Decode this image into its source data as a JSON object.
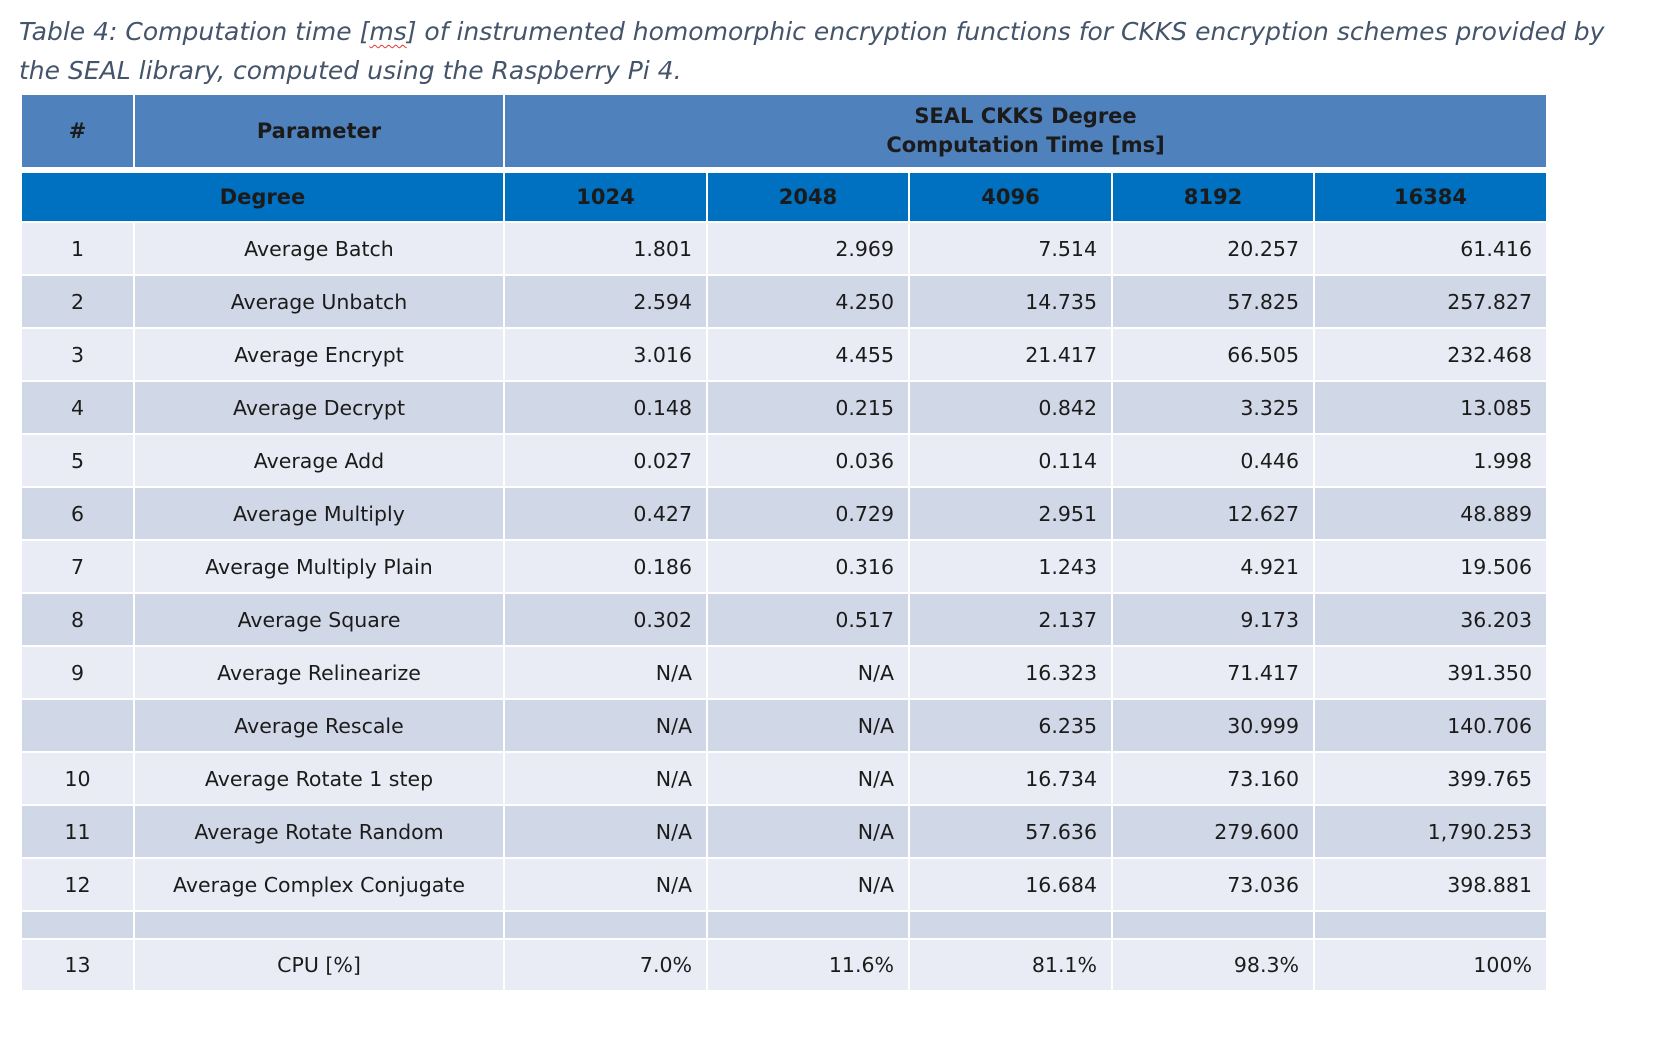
{
  "caption": {
    "line1_pre": "Table 4: Computation time [",
    "line1_underlined": "ms",
    "line1_post": "] of instrumented homomorphic encryption functions for CKKS encryption schemes provided by",
    "line2": "the SEAL library, computed using the Raspberry Pi 4."
  },
  "header": {
    "num_label": "#",
    "parameter_label": "Parameter",
    "group_line1": "SEAL CKKS Degree",
    "group_line2": "Computation Time [ms]",
    "degree_label": "Degree",
    "degrees": [
      "1024",
      "2048",
      "4096",
      "8192",
      "16384"
    ]
  },
  "rows": [
    {
      "num": "1",
      "param": "Average Batch",
      "values": [
        "1.801",
        "2.969",
        "7.514",
        "20.257",
        "61.416"
      ]
    },
    {
      "num": "2",
      "param": "Average Unbatch",
      "values": [
        "2.594",
        "4.250",
        "14.735",
        "57.825",
        "257.827"
      ]
    },
    {
      "num": "3",
      "param": "Average Encrypt",
      "values": [
        "3.016",
        "4.455",
        "21.417",
        "66.505",
        "232.468"
      ]
    },
    {
      "num": "4",
      "param": "Average Decrypt",
      "values": [
        "0.148",
        "0.215",
        "0.842",
        "3.325",
        "13.085"
      ]
    },
    {
      "num": "5",
      "param": "Average Add",
      "values": [
        "0.027",
        "0.036",
        "0.114",
        "0.446",
        "1.998"
      ]
    },
    {
      "num": "6",
      "param": "Average Multiply",
      "values": [
        "0.427",
        "0.729",
        "2.951",
        "12.627",
        "48.889"
      ]
    },
    {
      "num": "7",
      "param": "Average Multiply Plain",
      "values": [
        "0.186",
        "0.316",
        "1.243",
        "4.921",
        "19.506"
      ]
    },
    {
      "num": "8",
      "param": "Average Square",
      "values": [
        "0.302",
        "0.517",
        "2.137",
        "9.173",
        "36.203"
      ]
    },
    {
      "num": "9",
      "param": "Average Relinearize",
      "values": [
        "N/A",
        "N/A",
        "16.323",
        "71.417",
        "391.350"
      ]
    },
    {
      "num": "",
      "param": "Average Rescale",
      "values": [
        "N/A",
        "N/A",
        "6.235",
        "30.999",
        "140.706"
      ]
    },
    {
      "num": "10",
      "param": "Average Rotate 1 step",
      "values": [
        "N/A",
        "N/A",
        "16.734",
        "73.160",
        "399.765"
      ]
    },
    {
      "num": "11",
      "param": "Average Rotate Random",
      "values": [
        "N/A",
        "N/A",
        "57.636",
        "279.600",
        "1,790.253"
      ]
    },
    {
      "num": "12",
      "param": "Average Complex Conjugate",
      "values": [
        "N/A",
        "N/A",
        "16.684",
        "73.036",
        "398.881"
      ]
    }
  ],
  "cpu_row": {
    "num": "13",
    "param": "CPU [%]",
    "values": [
      "7.0%",
      "11.6%",
      "81.1%",
      "98.3%",
      "100%"
    ]
  }
}
